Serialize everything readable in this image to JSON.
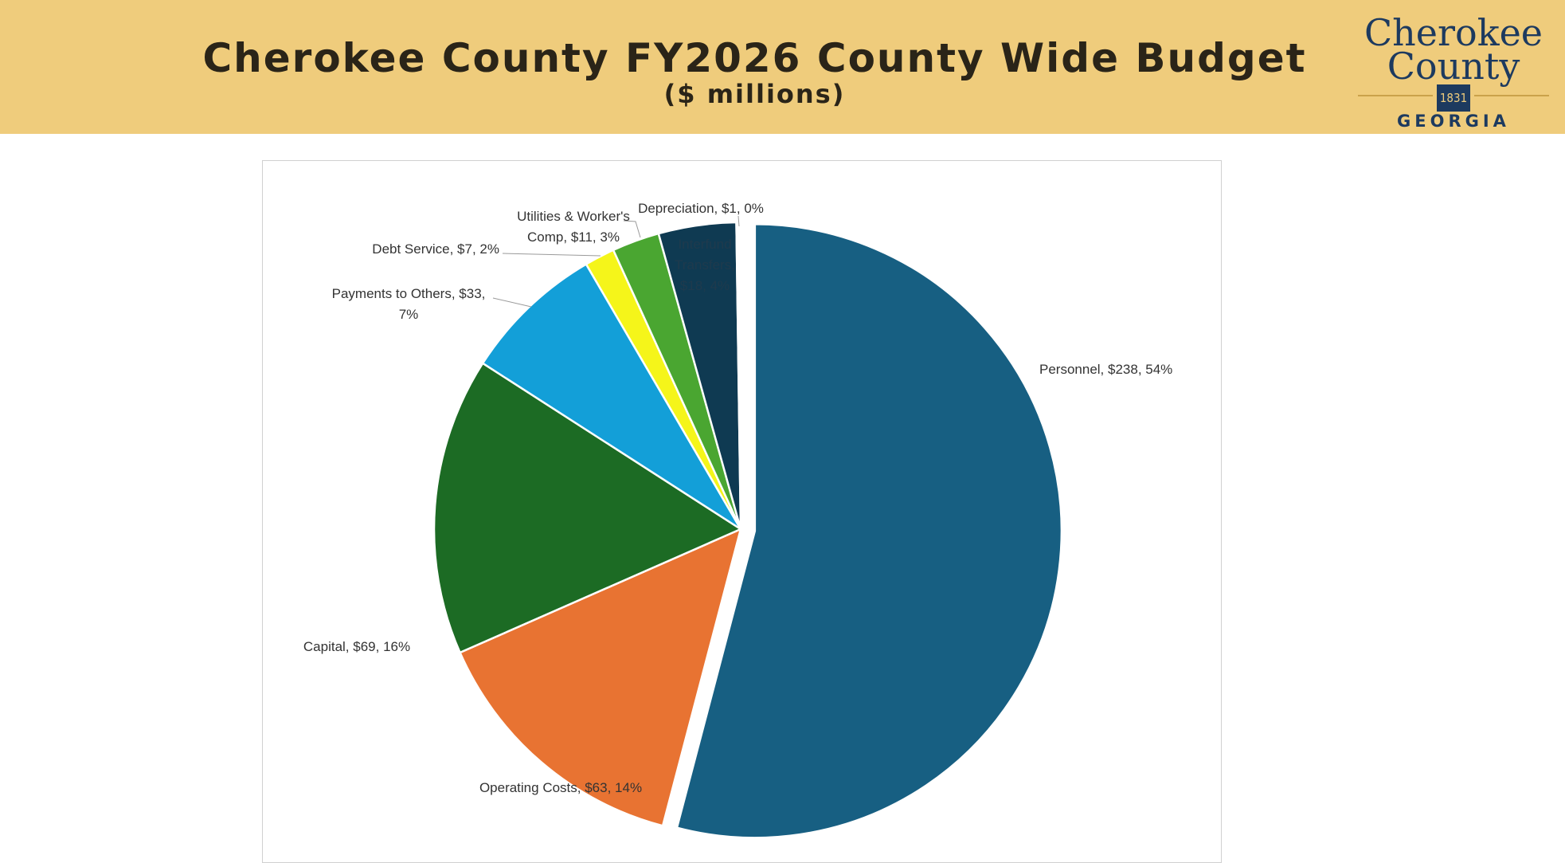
{
  "header": {
    "title": "Cherokee County FY2026  County Wide Budget",
    "subtitle": "($ millions)"
  },
  "logo": {
    "line1": "Cherokee",
    "line2": "County",
    "year": "1831",
    "state": "GEORGIA"
  },
  "chart_data": {
    "type": "pie",
    "title": "",
    "slices": [
      {
        "name": "Personnel",
        "value": 238,
        "percent": 54,
        "color": "#175f82",
        "label": "Personnel, $238, 54%",
        "exploded": true
      },
      {
        "name": "Operating Costs",
        "value": 63,
        "percent": 14,
        "color": "#e87332",
        "label": "Operating Costs, $63, 14%"
      },
      {
        "name": "Capital",
        "value": 69,
        "percent": 16,
        "color": "#1c6b24",
        "label": "Capital, $69, 16%"
      },
      {
        "name": "Payments to Others",
        "value": 33,
        "percent": 7,
        "color": "#139fd8",
        "label": "Payments to Others, $33, 7%"
      },
      {
        "name": "Debt Service",
        "value": 7,
        "percent": 2,
        "color": "#f5f51a",
        "label": "Debt Service, $7, 2%"
      },
      {
        "name": "Utilities & Worker's Comp",
        "value": 11,
        "percent": 3,
        "color": "#4aa631",
        "label": "Utilities & Worker's Comp, $11, 3%"
      },
      {
        "name": "Interfund Transfers",
        "value": 18,
        "percent": 4,
        "color": "#0f3a52",
        "label": "Interfund Transfers, $18, 4%"
      },
      {
        "name": "Depreciation",
        "value": 1,
        "percent": 0,
        "color": "#ffffff",
        "label": "Depreciation, $1, 0%"
      }
    ]
  }
}
